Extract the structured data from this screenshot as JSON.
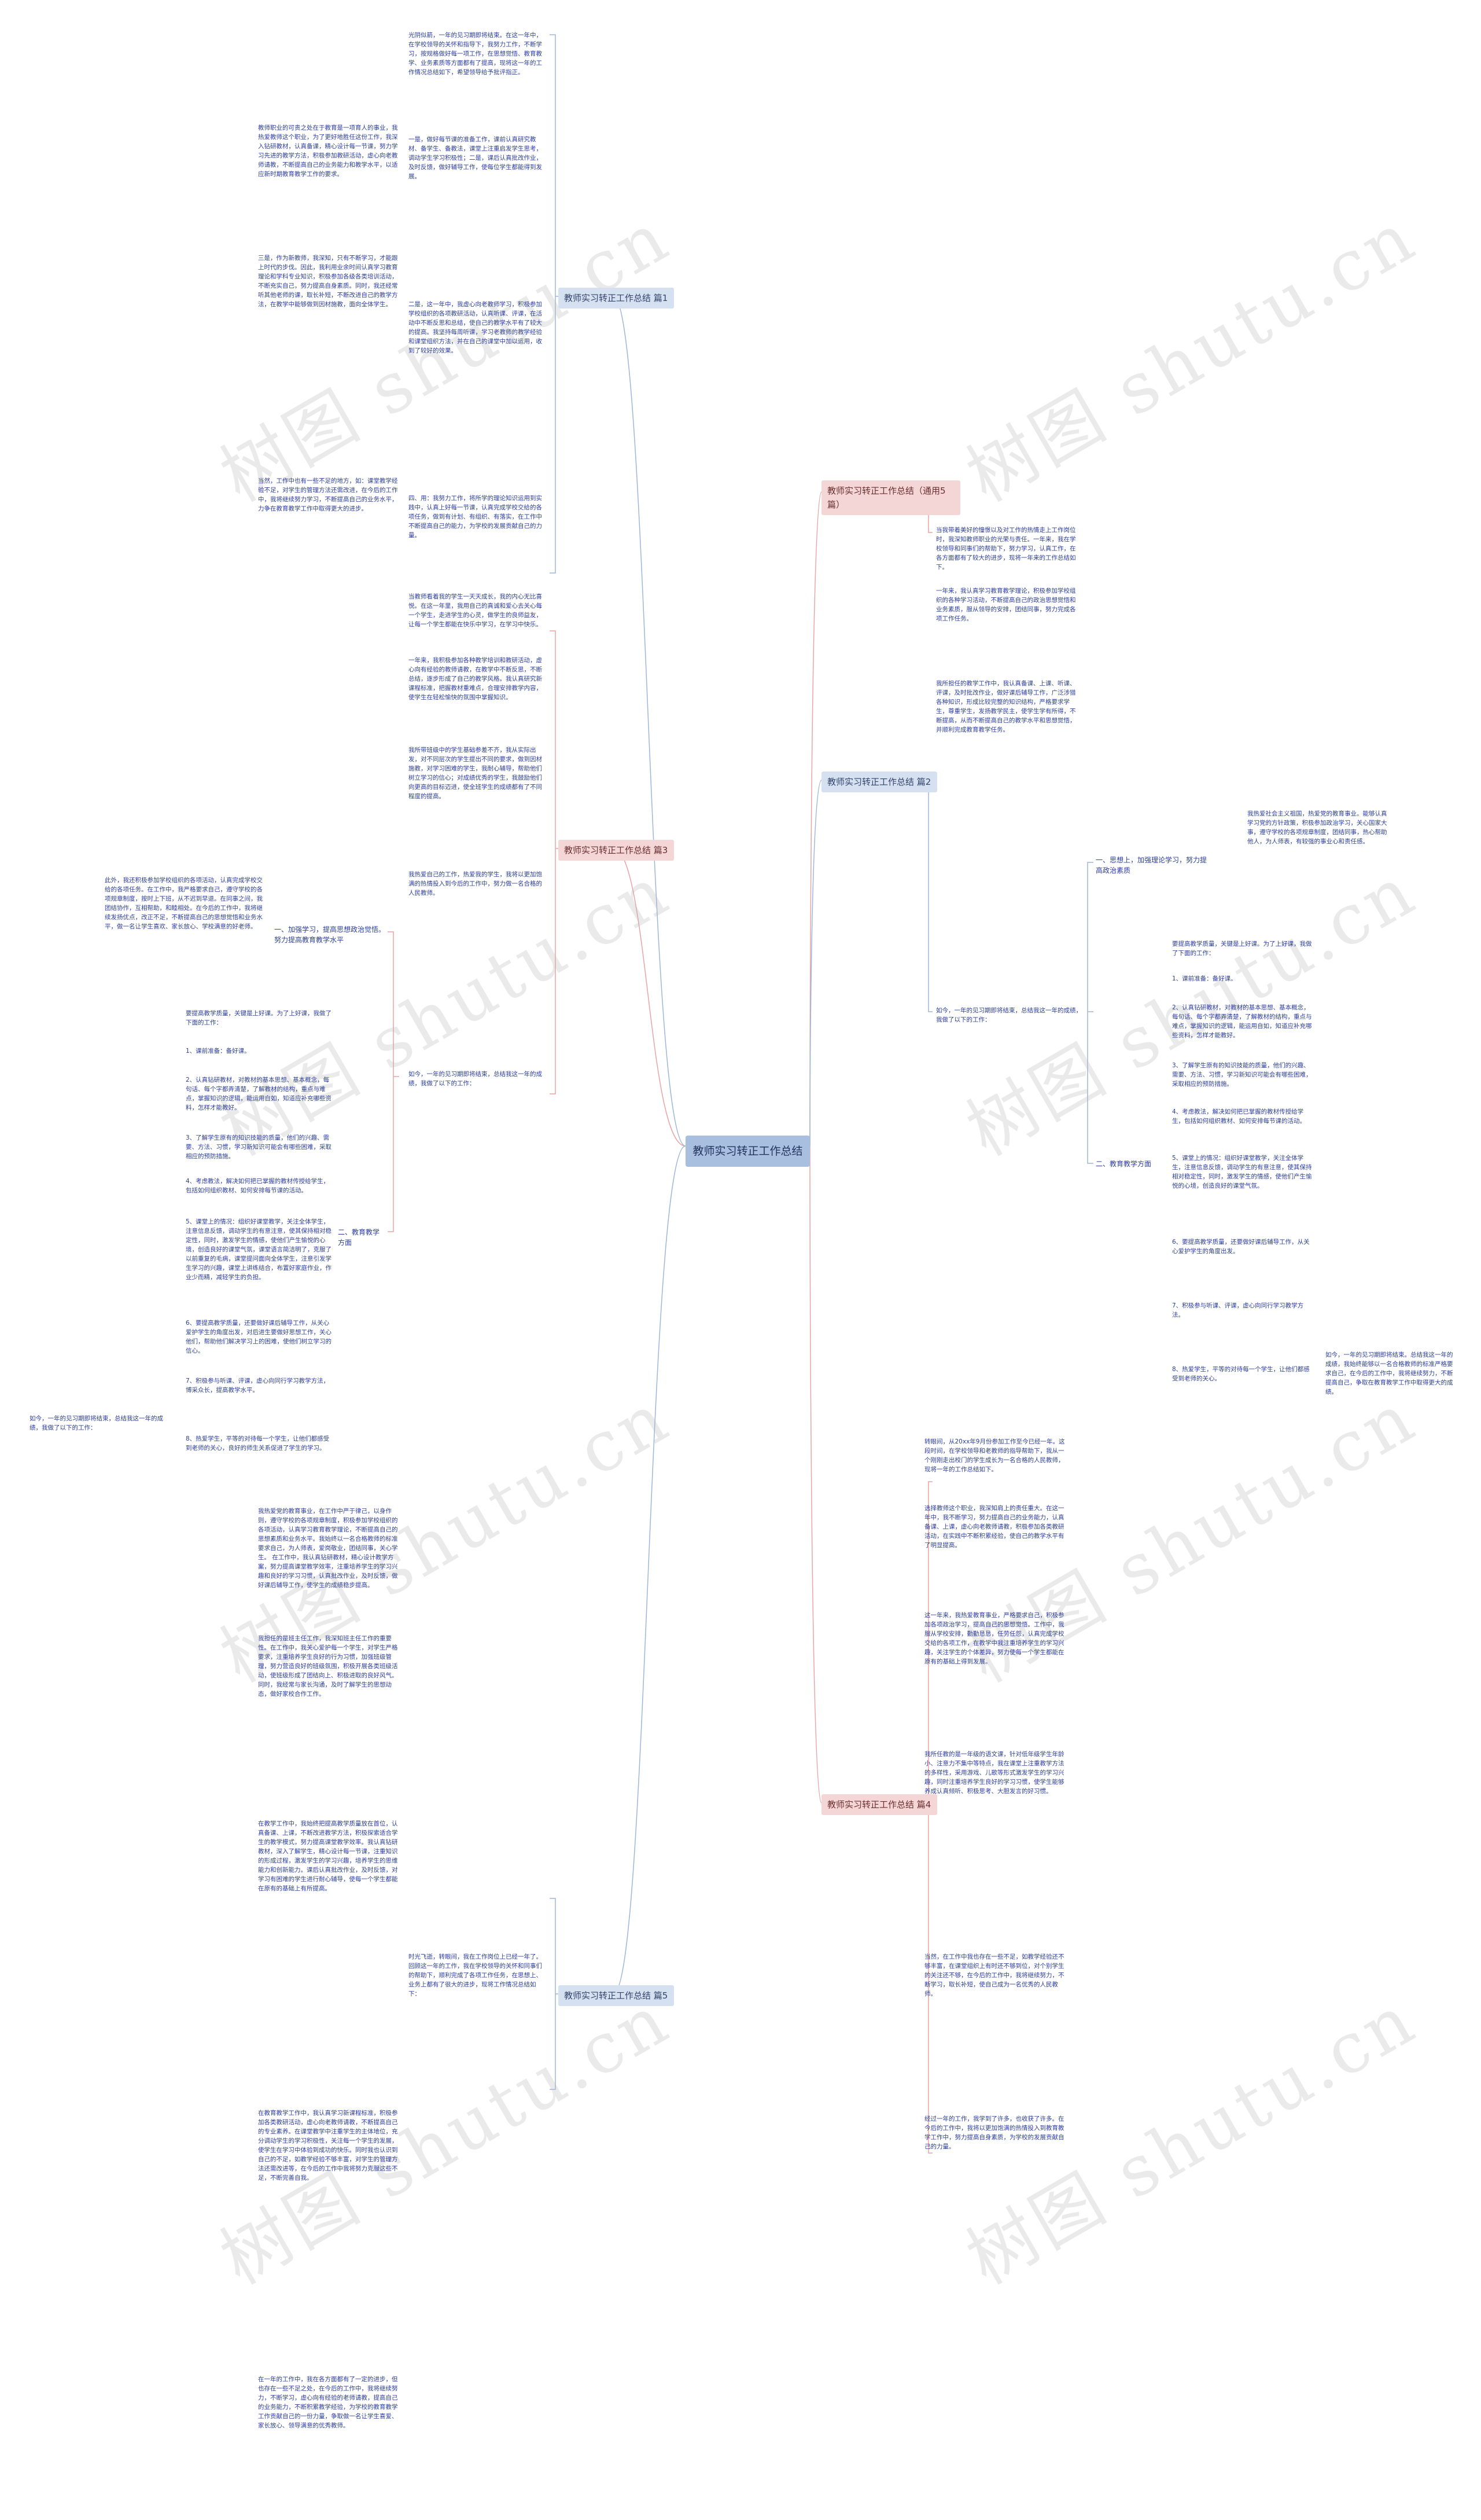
{
  "watermark_text": "树图 shutu.cn",
  "colors": {
    "root_bg": "#a9bfe0",
    "branch_blue": "#d5e1f1",
    "branch_pink": "#f4d6d6",
    "line_blue": "#9fb6da",
    "line_pink": "#e8a4a4",
    "text": "#2c3e9a"
  },
  "root": "教师实习转正工作总结",
  "branches": {
    "b1": "教师实习转正工作总结 篇1",
    "b2": "教师实习转正工作总结 篇2",
    "b3": "教师实习转正工作总结 篇3",
    "b4": "教师实习转正工作总结 篇4",
    "b5": "教师实习转正工作总结 篇5",
    "b6": "教师实习转正工作总结（通用5篇）"
  },
  "b1": {
    "p1": "光阴似箭，一年的见习期即将结束。在这一年中，在学校领导的关怀和指导下，我努力工作，不断学习，按规格做好每一项工作，在思想觉悟、教育教学、业务素质等方面都有了提高，现将这一年的工作情况总结如下，希望领导给予批评指正。",
    "p2": "教师职业的可贵之处在于教育是一项育人的事业，我热爱教师这个职业，为了更好地胜任这份工作，我深入钻研教材，认真备课，精心设计每一节课，努力学习先进的教学方法，积极参加教研活动，虚心向老教师请教，不断提高自己的业务能力和教学水平，以适应新时期教育教学工作的要求。",
    "p3": "一是，做好每节课的准备工作，课前认真研究教材、备学生、备教法，课堂上注重启发学生思考，调动学生学习积极性；二是，课后认真批改作业，及时反馈，做好辅导工作，使每位学生都能得到发展。",
    "p4": "三是，作为新教师，我深知，只有不断学习，才能跟上时代的步伐。因此，我利用业余时间认真学习教育理论和学科专业知识，积极参加各级各类培训活动，不断充实自己，努力提高自身素质。同时，我还经常听其他老师的课，取长补短，不断改进自己的教学方法，在教学中能够做到因材施教，面向全体学生。",
    "p5": "二是，这一年中，我虚心向老教师学习，积极参加学校组织的各项教研活动，认真听课、评课，在活动中不断反思和总结，使自己的教学水平有了较大的提高。我坚持每周听课，学习老教师的教学经验和课堂组织方法，并在自己的课堂中加以运用，收到了较好的效果。",
    "p6": "当然，工作中也有一些不足的地方，如：课堂教学经验不足，对学生的管理方法还需改进，在今后的工作中，我将继续努力学习，不断提高自己的业务水平，力争在教育教学工作中取得更大的进步。",
    "p7": "四、用：我努力工作，将所学的理论知识运用到实践中，认真上好每一节课，认真完成学校交给的各项任务，做到有计划、有组织、有落实，在工作中不断提高自己的能力，为学校的发展贡献自己的力量。"
  },
  "b3": {
    "p1": "当教师看着我的学生一天天成长，我的内心无比喜悦。在这一年里，我用自己的真诚和爱心去关心每一个学生，走进学生的心灵，做学生的良师益友，让每一个学生都能在快乐中学习，在学习中快乐。",
    "p2": "一年来，我积极参加各种教学培训和教研活动，虚心向有经验的教师请教，在教学中不断反思，不断总结，逐步形成了自己的教学风格。我认真研究新课程标准，把握教材重难点，合理安排教学内容，使学生在轻松愉快的氛围中掌握知识。",
    "p3": "我所带班级中的学生基础参差不齐，我从实际出发，对不同层次的学生提出不同的要求，做到因材施教，对学习困难的学生，我耐心辅导，帮助他们树立学习的信心；对成绩优秀的学生，我鼓励他们向更高的目标迈进，使全班学生的成绩都有了不同程度的提高。",
    "p4": "我热爱自己的工作，热爱我的学生，我将以更加饱满的热情投入到今后的工作中，努力做一名合格的人民教师。",
    "pleft": "此外，我还积极参加学校组织的各项活动，认真完成学校交给的各项任务。在工作中，我严格要求自己，遵守学校的各项规章制度，按时上下班，从不迟到早退。在同事之间，我团结协作，互相帮助，和睦相处。在今后的工作中，我将继续发扬优点，改正不足，不断提高自己的思想觉悟和业务水平，做一名让学生喜欢、家长放心、学校满意的好老师。",
    "s1": "一、加强学习，提高思想政治觉悟。努力提高教育教学水平",
    "s2": "二、教育教学方面",
    "intro": "要提高教学质量，关键是上好课。为了上好课，我做了下面的工作：",
    "i1": "1、课前准备：备好课。",
    "i2": "2、认真钻研教材，对教材的基本思想、基本概念，每句话、每个字都弄清楚，了解教材的结构，重点与难点，掌握知识的逻辑，能运用自如，知道应补充哪些资料，怎样才能教好。",
    "i3": "3、了解学生原有的知识技能的质量，他们的兴趣、需要、方法、习惯，学习新知识可能会有哪些困难，采取相应的预防措施。",
    "i4": "4、考虑教法，解决如何把已掌握的教材传授给学生，包括如何组织教材、如何安排每节课的活动。",
    "i5": "5、课堂上的情况：组织好课堂教学，关注全体学生，注意信息反馈，调动学生的有意注意，使其保持相对稳定性，同时，激发学生的情感，使他们产生愉悦的心境，创造良好的课堂气氛，课堂语言简洁明了，克服了以前重复的毛病，课堂提问面向全体学生，注意引发学生学习的兴趣，课堂上讲练结合，布置好家庭作业，作业少而精，减轻学生的负担。",
    "i6": "6、要提高教学质量，还要做好课后辅导工作，从关心爱护学生的角度出发，对后进生要做好思想工作，关心他们，帮助他们解决学习上的困难，使他们树立学习的信心。",
    "i7": "7、积极参与听课、评课，虚心向同行学习教学方法，博采众长，提高教学水平。",
    "i8": "8、热爱学生，平等的对待每一个学生，让他们都感受到老师的关心，良好的师生关系促进了学生的学习。",
    "summary": "如今，一年的见习期即将结束，总结我这一年的成绩，我做了以下的工作："
  },
  "b2": {
    "p1": "当我带着美好的憧憬以及对工作的热情，走上工作岗位时，一年的时间已经悄然过去。一年的见习工作使我深刻认识到教师职业的重要性，也使我在思想上、业务上都有了很大的提高，现就一年来的工作总结如下。",
    "p2": "一年来，我认真学习教育教学理论，积极参加学校组织的各种学习活动，不断提高自己的政治思想觉悟和业务素质，严格遵守学校的各项规章制度，服从领导的安排，团结同事，努力完成各项工作任务。",
    "p3": "我所担任的教学工作中，我认真备课、上课、听课、评课，及时批改作业、讲评作业，做好课后辅导工作，广泛涉猎各种知识，形成比较完整的知识结构，严格要求学生，尊重学生，发扬教学民主，使学生学有所得，不断提高，从而不断提高自己的教学水平和思想觉悟，并顺利完成教育教学任务。",
    "s1": "一、思想上，加强理论学习，努力提高政治素质",
    "s2": "二、教育教学方面",
    "right1": "我热爱社会主义祖国，热爱党的教育事业。能够认真学习党的方针政策，积极参加政治学习，关心国家大事，遵守学校的各项规章制度，团结同事，热心帮助他人，为人师表，有较强的事业心和责任感。",
    "intro": "要提高教学质量，关键是上好课。为了上好课，我做了下面的工作：",
    "i1": "1、课前准备：备好课。",
    "i2": "2、认真钻研教材，对教材的基本思想、基本概念，每句话、每个字都弄清楚，了解教材的结构，重点与难点，掌握知识的逻辑，能运用自如，知道应补充哪些资料，怎样才能教好。",
    "i3": "3、了解学生原有的知识技能的质量，他们的兴趣、需要、方法、习惯，学习新知识可能会有哪些困难，采取相应的预防措施。",
    "i4": "4、考虑教法，解决如何把已掌握的教材传授给学生，包括如何组织教材、如何安排每节课的活动。",
    "i5": "5、课堂上的情况：组织好课堂教学，关注全体学生，注意信息反馈，调动学生的有意注意，使其保持相对稳定性，同时，激发学生的情感，使他们产生愉悦的心境，创造良好的课堂气氛。",
    "i6": "6、要提高教学质量，还要做好课后辅导工作，从关心爱护学生的角度出发。",
    "i7": "7、积极参与听课、评课，虚心向同行学习教学方法。",
    "i8": "8、热爱学生，平等的对待每一个学生，让他们都感受到老师的关心。",
    "summary": "如今，一年的见习期即将结束，总结我这一年的成绩，我做了以下的工作：",
    "farright": "如今，一年的见习期即将结束。总结我这一年的成绩，我始终能够以一名合格教师的标准严格要求自己，在今后的工作中，我将继续努力，不断提高自己，争取在教育教学工作中取得更大的成绩。"
  },
  "b4": {
    "p1": "转眼间，从20xx年9月份参加工作至今已经一年。这段时间，在学校领导和老教师的指导帮助下，我从一个刚刚走出校门的学生成长为一名合格的人民教师，现将一年的工作总结如下。",
    "p2": "选择教师这个职业，我深知肩上的责任重大。在这一年中，我不断学习，努力提高自己的业务能力，认真备课、上课，虚心向老教师请教，积极参加各类教研活动，在实践中不断积累经验，使自己的教学水平有了明显提高。",
    "p3": "这一年来，我热爱教育事业，严格要求自己，积极参加各项政治学习，提高自己的思想觉悟。工作中，我服从学校安排，勤勤恳恳，任劳任怨，认真完成学校交给的各项工作，在教学中我注重培养学生的学习兴趣，关注学生的个体差异，努力使每一个学生都能在原有的基础上得到发展。",
    "p4": "我所任教的是一年级的语文课，针对低年级学生年龄小、注意力不集中等特点，我在课堂上注重教学方法的多样性，采用游戏、儿歌等形式激发学生的学习兴趣，同时注重培养学生良好的学习习惯，使学生能够养成认真倾听、积极思考、大胆发言的好习惯。",
    "p5": "当然，在工作中我也存在一些不足，如教学经验还不够丰富，在课堂组织上有时还不够到位，对个别学生的关注还不够，在今后的工作中，我将继续努力，不断学习，取长补短，使自己成为一名优秀的人民教师。",
    "p6": "经过一年的工作，我学到了许多，也收获了许多。在今后的工作中，我将以更加饱满的热情投入到教育教学工作中，努力提高自身素质，为学校的发展贡献自己的力量。"
  },
  "b5": {
    "p1": "时光飞逝，转眼间，我在工作岗位上已经一年了。回顾这一年的工作，我在学校领导的关怀和同事们的帮助下，顺利完成了各项工作任务，在思想上、业务上都有了很大的进步，现将工作情况总结如下：",
    "p2": "我热爱党的教育事业，在工作中严于律己，以身作则，遵守学校的各项规章制度，积极参加学校组织的各项活动，认真学习教育教学理论，不断提高自己的思想素质和业务水平。我始终以一名合格教师的标准要求自己，为人师表，爱岗敬业，团结同事，关心学生。\n在工作中，我认真钻研教材，精心设计教学方案，努力提高课堂教学效率，注重培养学生的学习兴趣和良好的学习习惯，认真批改作业，及时反馈，做好课后辅导工作，使学生的成绩稳步提高。",
    "p3": "我担任的是班主任工作，我深知班主任工作的重要性。在工作中，我关心爱护每一个学生，对学生严格要求，注重培养学生良好的行为习惯，加强班级管理，努力营造良好的班级氛围，积极开展各类班级活动，使班级形成了团结向上、积极进取的良好风气。同时，我经常与家长沟通，及时了解学生的思想动态，做好家校合作工作。",
    "p4": "在教学工作中，我始终把提高教学质量放在首位，认真备课、上课，不断改进教学方法，积极探索适合学生的教学模式，努力提高课堂教学效率。我认真钻研教材，深入了解学生，精心设计每一节课，注重知识的形成过程，激发学生的学习兴趣，培养学生的思维能力和创新能力。课后认真批改作业，及时反馈，对学习有困难的学生进行耐心辅导，使每一个学生都能在原有的基础上有所提高。",
    "p5": "在教育教学工作中，我认真学习新课程标准，积极参加各类教研活动，虚心向老教师请教，不断提高自己的专业素养。在课堂教学中注重学生的主体地位，充分调动学生的学习积极性，关注每一个学生的发展，使学生在学习中体验到成功的快乐。同时我也认识到自己的不足，如教学经验不够丰富，对学生的管理方法还需改进等，在今后的工作中我将努力克服这些不足，不断完善自我。",
    "p6": "在一年的工作中，我在各方面都有了一定的进步，但也存在一些不足之处，在今后的工作中，我将继续努力，不断学习，虚心向有经验的老师请教，提高自己的业务能力，不断积累教学经验，为学校的教育教学工作贡献自己的一份力量，争取做一名让学生喜爱、家长放心、领导满意的优秀教师。"
  },
  "b6": {
    "p1": "当我带着美好的憧憬以及对工作的热情走上工作岗位时，我深知教师职业的光荣与责任。一年来，我在学校领导和同事们的帮助下，努力学习，认真工作，在各方面都有了较大的进步，现将一年来的工作总结如下。",
    "p2": "一年来，我认真学习教育教学理论，积极参加学校组织的各种学习活动，不断提高自己的政治思想觉悟和业务素质，服从领导的安排，团结同事，努力完成各项工作任务。",
    "p3": "我所担任的教学工作中，我认真备课、上课、听课、评课，及时批改作业，做好课后辅导工作，广泛涉猎各种知识，形成比较完整的知识结构，严格要求学生，尊重学生，发扬教学民主，使学生学有所得，不断提高，从而不断提高自己的教学水平和思想觉悟，并顺利完成教育教学任务。"
  }
}
